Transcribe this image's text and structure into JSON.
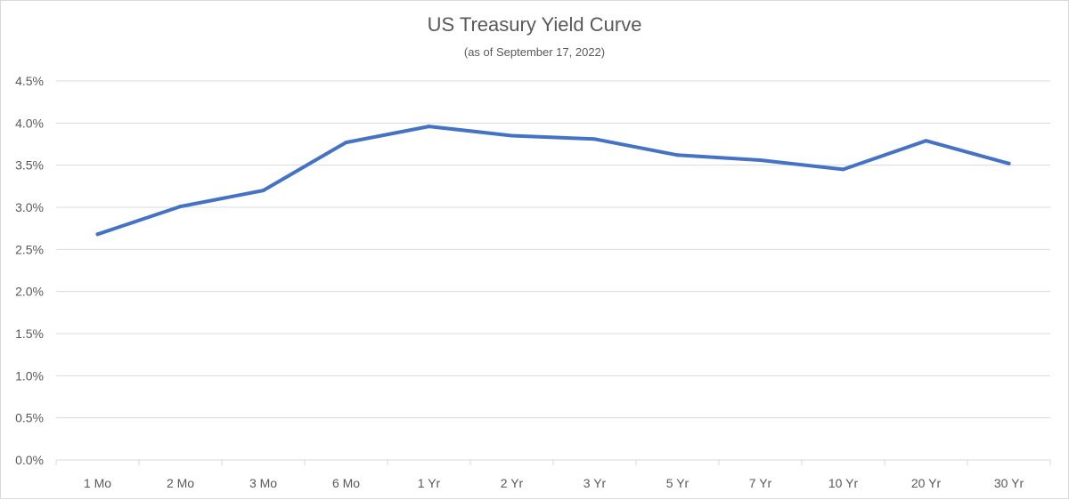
{
  "chart_data": {
    "type": "line",
    "title": "US Treasury Yield Curve",
    "subtitle": "(as of September 17, 2022)",
    "categories": [
      "1 Mo",
      "2 Mo",
      "3 Mo",
      "6 Mo",
      "1 Yr",
      "2 Yr",
      "3 Yr",
      "5 Yr",
      "7 Yr",
      "10 Yr",
      "20 Yr",
      "30 Yr"
    ],
    "series": [
      {
        "values": [
          2.68,
          3.01,
          3.2,
          3.77,
          3.96,
          3.85,
          3.81,
          3.62,
          3.56,
          3.45,
          3.79,
          3.52
        ]
      }
    ],
    "ylim": [
      0,
      4.5
    ],
    "ytick_step": 0.5,
    "ytick_labels": [
      "0.0%",
      "0.5%",
      "1.0%",
      "1.5%",
      "2.0%",
      "2.5%",
      "3.0%",
      "3.5%",
      "4.0%",
      "4.5%"
    ],
    "grid": true,
    "legend": "none",
    "colors": {
      "line": "#4472c4",
      "grid": "#d9d9d9",
      "text": "#595959"
    }
  }
}
